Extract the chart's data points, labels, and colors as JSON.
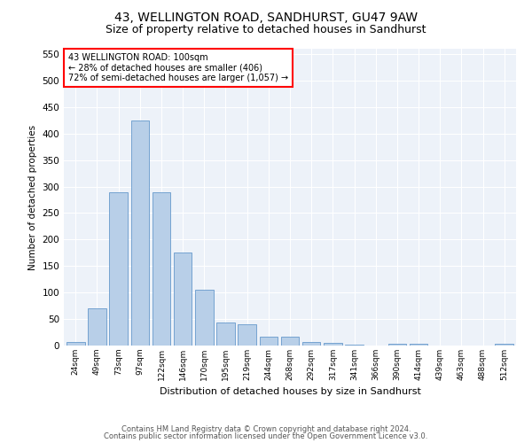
{
  "title": "43, WELLINGTON ROAD, SANDHURST, GU47 9AW",
  "subtitle": "Size of property relative to detached houses in Sandhurst",
  "xlabel": "Distribution of detached houses by size in Sandhurst",
  "ylabel": "Number of detached properties",
  "categories": [
    "24sqm",
    "49sqm",
    "73sqm",
    "97sqm",
    "122sqm",
    "146sqm",
    "170sqm",
    "195sqm",
    "219sqm",
    "244sqm",
    "268sqm",
    "292sqm",
    "317sqm",
    "341sqm",
    "366sqm",
    "390sqm",
    "414sqm",
    "439sqm",
    "463sqm",
    "488sqm",
    "512sqm"
  ],
  "values": [
    7,
    70,
    290,
    425,
    290,
    175,
    105,
    44,
    40,
    17,
    17,
    7,
    5,
    2,
    0,
    4,
    4,
    0,
    0,
    0,
    3
  ],
  "bar_color": "#b8cfe8",
  "bar_edgecolor": "#6699cc",
  "annotation_text": "43 WELLINGTON ROAD: 100sqm\n← 28% of detached houses are smaller (406)\n72% of semi-detached houses are larger (1,057) →",
  "annotation_box_edgecolor": "red",
  "footnote1": "Contains HM Land Registry data © Crown copyright and database right 2024.",
  "footnote2": "Contains public sector information licensed under the Open Government Licence v3.0.",
  "ylim": [
    0,
    560
  ],
  "yticks": [
    0,
    50,
    100,
    150,
    200,
    250,
    300,
    350,
    400,
    450,
    500,
    550
  ],
  "bg_color": "#edf2f9",
  "title_fontsize": 10,
  "subtitle_fontsize": 9
}
